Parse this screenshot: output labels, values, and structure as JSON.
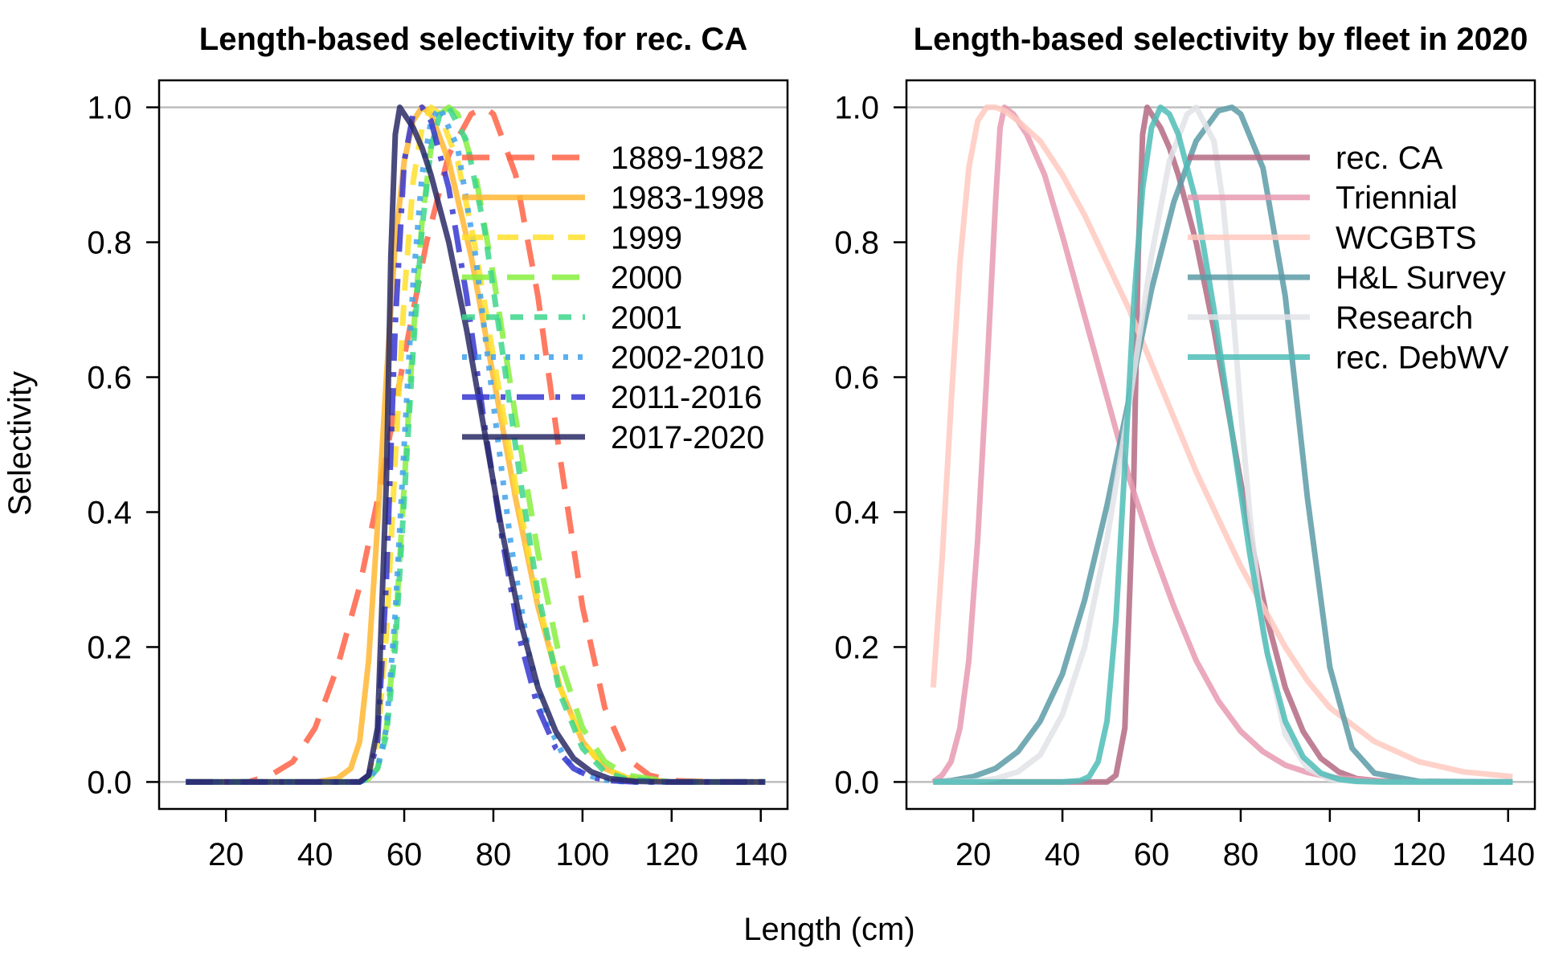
{
  "figure": {
    "xlabel": "Length (cm)",
    "ylabel": "Selectivity"
  },
  "chart_data": [
    {
      "type": "line",
      "title": "Length-based selectivity for rec. CA",
      "xlabel": "Length (cm)",
      "ylabel": "Selectivity",
      "xlim": [
        5,
        146
      ],
      "ylim": [
        -0.04,
        1.04
      ],
      "xticks": [
        20,
        40,
        60,
        80,
        100,
        120,
        140
      ],
      "yticks": [
        0.0,
        0.2,
        0.4,
        0.6,
        0.8,
        1.0
      ],
      "ytick_labels": [
        "0.0",
        "0.2",
        "0.4",
        "0.6",
        "0.8",
        "1.0"
      ],
      "reference_lines": [
        0,
        1
      ],
      "legend_position": "top-right",
      "series": [
        {
          "name": "1889-1982",
          "color": "#FF6347",
          "dash": "long-dash",
          "x": [
            11,
            20,
            25,
            30,
            35,
            40,
            45,
            50,
            55,
            60,
            65,
            70,
            75,
            78,
            80,
            85,
            90,
            95,
            100,
            105,
            110,
            115,
            120,
            130,
            141
          ],
          "y": [
            0,
            0.0,
            0.0,
            0.01,
            0.03,
            0.08,
            0.17,
            0.29,
            0.45,
            0.63,
            0.8,
            0.93,
            0.99,
            1.0,
            0.99,
            0.9,
            0.72,
            0.48,
            0.26,
            0.11,
            0.035,
            0.01,
            0.002,
            0,
            0
          ]
        },
        {
          "name": "1983-1998",
          "color": "#FFB733",
          "dash": "solid",
          "x": [
            11,
            40,
            45,
            48,
            50,
            52,
            54,
            56,
            58,
            60,
            62,
            64,
            66,
            70,
            75,
            80,
            85,
            90,
            95,
            100,
            105,
            110,
            120,
            141
          ],
          "y": [
            0,
            0.0,
            0.005,
            0.02,
            0.06,
            0.18,
            0.38,
            0.6,
            0.8,
            0.92,
            0.98,
            1.0,
            0.99,
            0.92,
            0.78,
            0.6,
            0.42,
            0.26,
            0.14,
            0.06,
            0.02,
            0.006,
            0,
            0
          ]
        },
        {
          "name": "1999",
          "color": "#FFE12D",
          "dash": "medium-dash",
          "x": [
            11,
            50,
            52,
            54,
            56,
            58,
            60,
            62,
            64,
            66,
            68,
            72,
            76,
            80,
            85,
            90,
            95,
            100,
            105,
            110,
            120,
            141
          ],
          "y": [
            0,
            0.0,
            0.01,
            0.06,
            0.22,
            0.48,
            0.72,
            0.89,
            0.97,
            1.0,
            0.99,
            0.92,
            0.79,
            0.63,
            0.44,
            0.27,
            0.14,
            0.06,
            0.02,
            0.006,
            0,
            0
          ]
        },
        {
          "name": "2000",
          "color": "#87EE3F",
          "dash": "long-dash",
          "x": [
            11,
            50,
            52,
            54,
            56,
            58,
            60,
            62,
            64,
            66,
            68,
            70,
            72,
            76,
            80,
            85,
            90,
            95,
            100,
            105,
            110,
            120,
            141
          ],
          "y": [
            0,
            0.0,
            0.005,
            0.02,
            0.08,
            0.22,
            0.44,
            0.66,
            0.83,
            0.94,
            0.99,
            1.0,
            0.99,
            0.9,
            0.75,
            0.54,
            0.34,
            0.18,
            0.08,
            0.03,
            0.01,
            0,
            0
          ]
        },
        {
          "name": "2001",
          "color": "#3DD68C",
          "dash": "short-dash",
          "x": [
            11,
            50,
            52,
            54,
            56,
            58,
            60,
            62,
            64,
            66,
            68,
            70,
            74,
            78,
            82,
            86,
            90,
            95,
            100,
            105,
            110,
            120,
            141
          ],
          "y": [
            0,
            0.0,
            0.005,
            0.02,
            0.07,
            0.2,
            0.42,
            0.64,
            0.82,
            0.94,
            0.99,
            1.0,
            0.95,
            0.82,
            0.64,
            0.45,
            0.28,
            0.13,
            0.05,
            0.015,
            0.004,
            0,
            0
          ]
        },
        {
          "name": "2002-2010",
          "color": "#3FA2EC",
          "dash": "dotted",
          "x": [
            11,
            50,
            52,
            54,
            56,
            58,
            60,
            62,
            64,
            66,
            68,
            72,
            76,
            80,
            84,
            88,
            92,
            96,
            100,
            105,
            110,
            120,
            141
          ],
          "y": [
            0,
            0.0,
            0.005,
            0.02,
            0.08,
            0.25,
            0.5,
            0.74,
            0.9,
            0.98,
            1.0,
            0.94,
            0.78,
            0.56,
            0.35,
            0.19,
            0.09,
            0.035,
            0.012,
            0.003,
            0,
            0,
            0
          ]
        },
        {
          "name": "2011-2016",
          "color": "#3737D0",
          "dash": "dash-dot",
          "x": [
            11,
            50,
            52,
            54,
            56,
            58,
            60,
            62,
            64,
            66,
            70,
            74,
            78,
            82,
            86,
            90,
            94,
            98,
            102,
            106,
            112,
            120,
            141
          ],
          "y": [
            0,
            0.0,
            0.01,
            0.06,
            0.3,
            0.68,
            0.92,
            0.99,
            1.0,
            0.98,
            0.88,
            0.72,
            0.53,
            0.36,
            0.21,
            0.11,
            0.05,
            0.02,
            0.007,
            0.002,
            0,
            0,
            0
          ]
        },
        {
          "name": "2017-2020",
          "color": "#2A2A66",
          "dash": "solid",
          "x": [
            11,
            50,
            52,
            54,
            56,
            57,
            58,
            59,
            60,
            62,
            64,
            66,
            70,
            74,
            78,
            82,
            86,
            90,
            94,
            98,
            102,
            106,
            112,
            120,
            141
          ],
          "y": [
            0,
            0.0,
            0.01,
            0.08,
            0.45,
            0.78,
            0.96,
            1.0,
            0.99,
            0.97,
            0.94,
            0.9,
            0.8,
            0.67,
            0.52,
            0.37,
            0.24,
            0.14,
            0.075,
            0.035,
            0.015,
            0.005,
            0.001,
            0,
            0
          ]
        }
      ]
    },
    {
      "type": "line",
      "title": "Length-based selectivity by fleet in 2020",
      "xlabel": "Length (cm)",
      "ylabel": "Selectivity",
      "xlim": [
        5,
        146
      ],
      "ylim": [
        -0.04,
        1.04
      ],
      "xticks": [
        20,
        40,
        60,
        80,
        100,
        120,
        140
      ],
      "yticks": [
        0.0,
        0.2,
        0.4,
        0.6,
        0.8,
        1.0
      ],
      "ytick_labels": [
        "0.0",
        "0.2",
        "0.4",
        "0.6",
        "0.8",
        "1.0"
      ],
      "reference_lines": [
        0,
        1
      ],
      "legend_position": "top-right",
      "series": [
        {
          "name": "rec. CA",
          "color": "#B46A83",
          "dash": "solid",
          "x": [
            11,
            48,
            50,
            52,
            54,
            56,
            57,
            58,
            59,
            60,
            62,
            64,
            66,
            70,
            74,
            78,
            82,
            86,
            90,
            94,
            98,
            102,
            106,
            112,
            120,
            141
          ],
          "y": [
            0,
            0,
            0.0,
            0.01,
            0.08,
            0.45,
            0.78,
            0.96,
            1.0,
            0.99,
            0.97,
            0.94,
            0.9,
            0.8,
            0.67,
            0.52,
            0.37,
            0.24,
            0.14,
            0.075,
            0.035,
            0.015,
            0.005,
            0.001,
            0,
            0
          ]
        },
        {
          "name": "Triennial",
          "color": "#E89AB1",
          "dash": "solid",
          "x": [
            11,
            13,
            15,
            17,
            19,
            21,
            23,
            25,
            26,
            27,
            29,
            32,
            36,
            40,
            45,
            50,
            55,
            60,
            65,
            70,
            75,
            80,
            85,
            90,
            95,
            100,
            110,
            120,
            141
          ],
          "y": [
            0,
            0.01,
            0.03,
            0.08,
            0.18,
            0.36,
            0.6,
            0.86,
            0.97,
            1.0,
            0.99,
            0.96,
            0.9,
            0.81,
            0.69,
            0.57,
            0.45,
            0.35,
            0.26,
            0.18,
            0.12,
            0.075,
            0.045,
            0.025,
            0.014,
            0.007,
            0.002,
            0,
            0
          ]
        },
        {
          "name": "WCGBTS",
          "color": "#FFC9C0",
          "dash": "solid",
          "x": [
            11,
            13,
            15,
            17,
            19,
            21,
            23,
            25,
            27,
            30,
            35,
            40,
            45,
            50,
            55,
            60,
            65,
            70,
            75,
            80,
            85,
            90,
            95,
            100,
            110,
            120,
            130,
            141
          ],
          "y": [
            0.14,
            0.33,
            0.56,
            0.77,
            0.91,
            0.98,
            1.0,
            1.0,
            0.995,
            0.98,
            0.95,
            0.9,
            0.84,
            0.77,
            0.7,
            0.62,
            0.54,
            0.46,
            0.39,
            0.32,
            0.26,
            0.2,
            0.15,
            0.11,
            0.06,
            0.03,
            0.015,
            0.008
          ]
        },
        {
          "name": "H&L Survey",
          "color": "#5C9BA6",
          "dash": "solid",
          "x": [
            11,
            15,
            20,
            25,
            30,
            35,
            40,
            45,
            50,
            55,
            60,
            65,
            70,
            75,
            78,
            80,
            85,
            90,
            92,
            95,
            100,
            105,
            110,
            120,
            141
          ],
          "y": [
            0.0,
            0.002,
            0.008,
            0.02,
            0.045,
            0.09,
            0.16,
            0.27,
            0.41,
            0.57,
            0.73,
            0.86,
            0.95,
            0.995,
            1.0,
            0.99,
            0.91,
            0.72,
            0.6,
            0.42,
            0.17,
            0.05,
            0.013,
            0.001,
            0
          ]
        },
        {
          "name": "Research",
          "color": "#E0E3E8",
          "dash": "solid",
          "x": [
            11,
            20,
            25,
            30,
            35,
            40,
            45,
            50,
            55,
            60,
            64,
            68,
            70,
            74,
            76,
            78,
            80,
            82,
            85,
            90,
            95,
            100,
            105,
            110,
            141
          ],
          "y": [
            0,
            0.001,
            0.005,
            0.015,
            0.04,
            0.1,
            0.2,
            0.36,
            0.56,
            0.78,
            0.92,
            0.99,
            1.0,
            0.95,
            0.86,
            0.72,
            0.55,
            0.4,
            0.22,
            0.07,
            0.02,
            0.004,
            0.001,
            0,
            0
          ]
        },
        {
          "name": "rec. DebWV",
          "color": "#4FBDB7",
          "dash": "solid",
          "x": [
            11,
            40,
            44,
            46,
            48,
            50,
            52,
            54,
            56,
            58,
            60,
            62,
            64,
            66,
            70,
            74,
            78,
            82,
            86,
            90,
            94,
            98,
            102,
            106,
            112,
            120,
            141
          ],
          "y": [
            0,
            0.0,
            0.002,
            0.008,
            0.03,
            0.09,
            0.24,
            0.47,
            0.71,
            0.88,
            0.97,
            1.0,
            0.99,
            0.96,
            0.86,
            0.7,
            0.52,
            0.34,
            0.19,
            0.09,
            0.037,
            0.013,
            0.004,
            0.001,
            0,
            0,
            0
          ]
        }
      ]
    }
  ]
}
